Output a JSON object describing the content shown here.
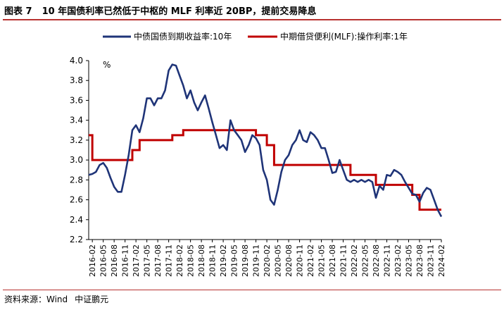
{
  "header": {
    "figure_number": "图表 7",
    "title": "10 年国债利率已然低于中枢的 MLF 利率近 20BP，提前交易降息"
  },
  "footer": {
    "source_label": "资料来源：Wind",
    "org": "中证鹏元"
  },
  "colors": {
    "series_10y": "#1f3478",
    "series_mlf": "#c00000",
    "rule": "#b8312f"
  },
  "chart_data": {
    "type": "line",
    "title": "",
    "xlabel": "",
    "ylabel": "%",
    "ylim": [
      2.2,
      4.0
    ],
    "yticks": [
      2.2,
      2.4,
      2.6,
      2.8,
      3.0,
      3.2,
      3.4,
      3.6,
      3.8,
      4.0
    ],
    "x_tick_labels": [
      "2016-02",
      "2016-05",
      "2016-08",
      "2016-11",
      "2017-02",
      "2017-05",
      "2017-08",
      "2017-11",
      "2018-02",
      "2018-05",
      "2018-08",
      "2018-11",
      "2019-02",
      "2019-05",
      "2019-08",
      "2019-11",
      "2020-02",
      "2020-05",
      "2020-08",
      "2020-11",
      "2021-02",
      "2021-05",
      "2021-08",
      "2021-11",
      "2022-02",
      "2022-05",
      "2022-08",
      "2022-11",
      "2023-02",
      "2023-05",
      "2023-08",
      "2023-11",
      "2024-02"
    ],
    "grid": false,
    "legend_position": "top",
    "series": [
      {
        "name": "中债国债到期收益率:10年",
        "dates": [
          "2016-01",
          "2016-02",
          "2016-03",
          "2016-04",
          "2016-05",
          "2016-06",
          "2016-07",
          "2016-08",
          "2016-09",
          "2016-10",
          "2016-11",
          "2016-12",
          "2017-01",
          "2017-02",
          "2017-03",
          "2017-04",
          "2017-05",
          "2017-06",
          "2017-07",
          "2017-08",
          "2017-09",
          "2017-10",
          "2017-11",
          "2017-12",
          "2018-01",
          "2018-02",
          "2018-03",
          "2018-04",
          "2018-05",
          "2018-06",
          "2018-07",
          "2018-08",
          "2018-09",
          "2018-10",
          "2018-11",
          "2018-12",
          "2019-01",
          "2019-02",
          "2019-03",
          "2019-04",
          "2019-05",
          "2019-06",
          "2019-07",
          "2019-08",
          "2019-09",
          "2019-10",
          "2019-11",
          "2019-12",
          "2020-01",
          "2020-02",
          "2020-03",
          "2020-04",
          "2020-05",
          "2020-06",
          "2020-07",
          "2020-08",
          "2020-09",
          "2020-10",
          "2020-11",
          "2020-12",
          "2021-01",
          "2021-02",
          "2021-03",
          "2021-04",
          "2021-05",
          "2021-06",
          "2021-07",
          "2021-08",
          "2021-09",
          "2021-10",
          "2021-11",
          "2021-12",
          "2022-01",
          "2022-02",
          "2022-03",
          "2022-04",
          "2022-05",
          "2022-06",
          "2022-07",
          "2022-08",
          "2022-09",
          "2022-10",
          "2022-11",
          "2022-12",
          "2023-01",
          "2023-02",
          "2023-03",
          "2023-04",
          "2023-05",
          "2023-06",
          "2023-07",
          "2023-08",
          "2023-09",
          "2023-10",
          "2023-11",
          "2023-12",
          "2024-01",
          "2024-02"
        ],
        "values": [
          2.85,
          2.86,
          2.88,
          2.95,
          2.97,
          2.92,
          2.82,
          2.73,
          2.68,
          2.68,
          2.85,
          3.05,
          3.3,
          3.35,
          3.28,
          3.42,
          3.62,
          3.62,
          3.55,
          3.62,
          3.62,
          3.7,
          3.9,
          3.96,
          3.95,
          3.85,
          3.75,
          3.62,
          3.7,
          3.58,
          3.5,
          3.58,
          3.65,
          3.52,
          3.38,
          3.25,
          3.12,
          3.15,
          3.1,
          3.4,
          3.3,
          3.25,
          3.2,
          3.08,
          3.15,
          3.25,
          3.22,
          3.15,
          2.9,
          2.8,
          2.6,
          2.55,
          2.7,
          2.88,
          3.0,
          3.05,
          3.15,
          3.2,
          3.3,
          3.2,
          3.18,
          3.28,
          3.25,
          3.2,
          3.12,
          3.12,
          3.0,
          2.87,
          2.88,
          3.0,
          2.9,
          2.8,
          2.78,
          2.8,
          2.78,
          2.8,
          2.78,
          2.8,
          2.78,
          2.62,
          2.74,
          2.7,
          2.85,
          2.84,
          2.9,
          2.88,
          2.85,
          2.78,
          2.72,
          2.66,
          2.65,
          2.58,
          2.67,
          2.72,
          2.7,
          2.6,
          2.5,
          2.43
        ]
      },
      {
        "name": "中期借贷便利(MLF):操作利率:1年",
        "steps": [
          [
            "2016-01",
            3.25
          ],
          [
            "2016-02",
            3.0
          ],
          [
            "2017-01",
            3.1
          ],
          [
            "2017-03",
            3.2
          ],
          [
            "2017-12",
            3.25
          ],
          [
            "2018-03",
            3.3
          ],
          [
            "2019-11",
            3.25
          ],
          [
            "2020-02",
            3.15
          ],
          [
            "2020-04",
            2.95
          ],
          [
            "2022-01",
            2.85
          ],
          [
            "2022-08",
            2.75
          ],
          [
            "2023-06",
            2.65
          ],
          [
            "2023-08",
            2.5
          ],
          [
            "2024-02",
            2.5
          ]
        ]
      }
    ]
  }
}
